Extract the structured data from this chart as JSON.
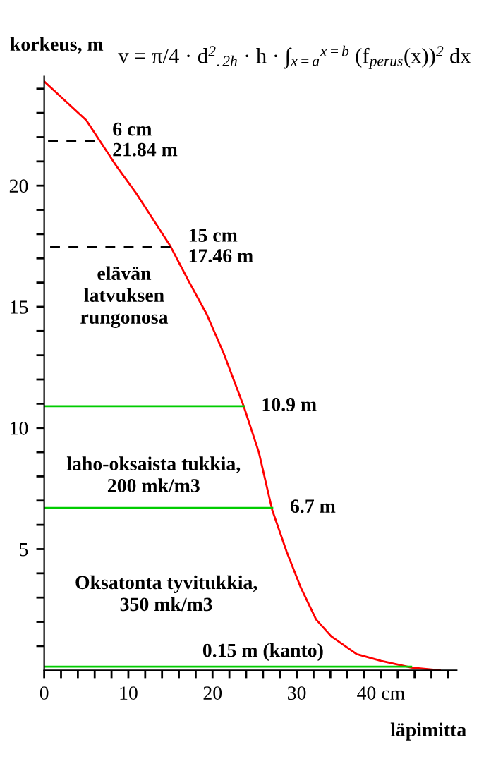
{
  "chart_data": {
    "type": "line",
    "title": "v = π/4 · d$^{2}$$_{.2h}$ · h · ∫$_{x=a}$$^{x=b}$ (f$_{perus}$(x))$^{2}$ dx",
    "xlabel": "läpimitta",
    "ylabel": "korkeus, m",
    "series": [
      {
        "color": "#ff0000",
        "line_style": "solid",
        "x": [
          0,
          5,
          8.6,
          10.9,
          15,
          17.1,
          19.3,
          21.3,
          23.7,
          25.5,
          27.1,
          28.8,
          30.5,
          32.3,
          34.1,
          37.1,
          40,
          43.6,
          47
        ],
        "values": [
          24.3,
          22.7,
          20.8,
          19.7,
          17.5,
          16.1,
          14.7,
          13.1,
          10.9,
          9.0,
          6.6,
          4.9,
          3.4,
          2.1,
          1.4,
          0.67,
          0.39,
          0.11,
          0
        ]
      },
      {
        "color": "#000000",
        "line_style": "dashed",
        "x": [
          0,
          6
        ],
        "values": [
          21.84,
          21.84
        ]
      },
      {
        "color": "#000000",
        "line_style": "dashed",
        "x": [
          0,
          15
        ],
        "values": [
          17.46,
          17.46
        ]
      },
      {
        "color": "#00cc00",
        "line_style": "solid",
        "x": [
          0,
          23.7
        ],
        "values": [
          10.9,
          10.9
        ]
      },
      {
        "color": "#00cc00",
        "line_style": "solid",
        "x": [
          0,
          27.1
        ],
        "values": [
          6.7,
          6.7
        ]
      },
      {
        "color": "#00cc00",
        "line_style": "solid",
        "x": [
          0,
          43.6
        ],
        "values": [
          0.15,
          0.15
        ]
      }
    ],
    "annotations": [
      {
        "text": "6 cm\n21.84 m",
        "x": 6,
        "y": 21.84
      },
      {
        "text": "15 cm\n17.46 m",
        "x": 15,
        "y": 17.46
      },
      {
        "text": "10.9 m",
        "x": 23.7,
        "y": 10.9
      },
      {
        "text": "6.7 m",
        "x": 27.1,
        "y": 6.7
      },
      "elävän\nlatvuksen\nrungonosa",
      "laho-oksaista tukkia,\n200 mk/m3",
      "Oksatonta tyvitukkia,\n350 mk/m3",
      "0.15 m (kanto)"
    ],
    "xlim": [
      0,
      49
    ],
    "ylim": [
      0,
      24.5
    ],
    "xticks": [
      {
        "value": 0,
        "label": "0"
      },
      {
        "value": 2,
        "label": null
      },
      {
        "value": 4,
        "label": null
      },
      {
        "value": 6,
        "label": null
      },
      {
        "value": 8,
        "label": null
      },
      10,
      {
        "value": 12,
        "label": null
      },
      {
        "value": 14,
        "label": null
      },
      {
        "value": 16,
        "label": null
      },
      {
        "value": 18,
        "label": null
      },
      20,
      {
        "value": 22,
        "label": null
      },
      {
        "value": 24,
        "label": null
      },
      {
        "value": 26,
        "label": null
      },
      {
        "value": 28,
        "label": null
      },
      30,
      {
        "value": 32,
        "label": null
      },
      {
        "value": 34,
        "label": null
      },
      {
        "value": 36,
        "label": null
      },
      {
        "value": 38,
        "label": null
      },
      {
        "value": 40,
        "label": "40 cm"
      },
      {
        "value": 42,
        "label": null
      },
      {
        "value": 44,
        "label": null
      },
      {
        "value": 46,
        "label": null
      },
      {
        "value": 48,
        "label": null
      }
    ],
    "yticks": [
      {
        "value": 1,
        "label": null
      },
      {
        "value": 2,
        "label": null
      },
      {
        "value": 3,
        "label": null
      },
      {
        "value": 4,
        "label": null
      },
      5,
      {
        "value": 6,
        "label": null
      },
      {
        "value": 7,
        "label": null
      },
      {
        "value": 8,
        "label": null
      },
      {
        "value": 9,
        "label": null
      },
      10,
      {
        "value": 11,
        "label": null
      },
      {
        "value": 12,
        "label": null
      },
      {
        "value": 13,
        "label": null
      },
      {
        "value": 14,
        "label": null
      },
      15,
      {
        "value": 16,
        "label": null
      },
      {
        "value": 17,
        "label": null
      },
      {
        "value": 18,
        "label": null
      },
      {
        "value": 19,
        "label": null
      },
      20,
      {
        "value": 21,
        "label": null
      },
      {
        "value": 22,
        "label": null
      },
      {
        "value": 23,
        "label": null
      },
      {
        "value": 24,
        "label": null
      }
    ],
    "grid": false,
    "legend": false,
    "marker": "none"
  }
}
